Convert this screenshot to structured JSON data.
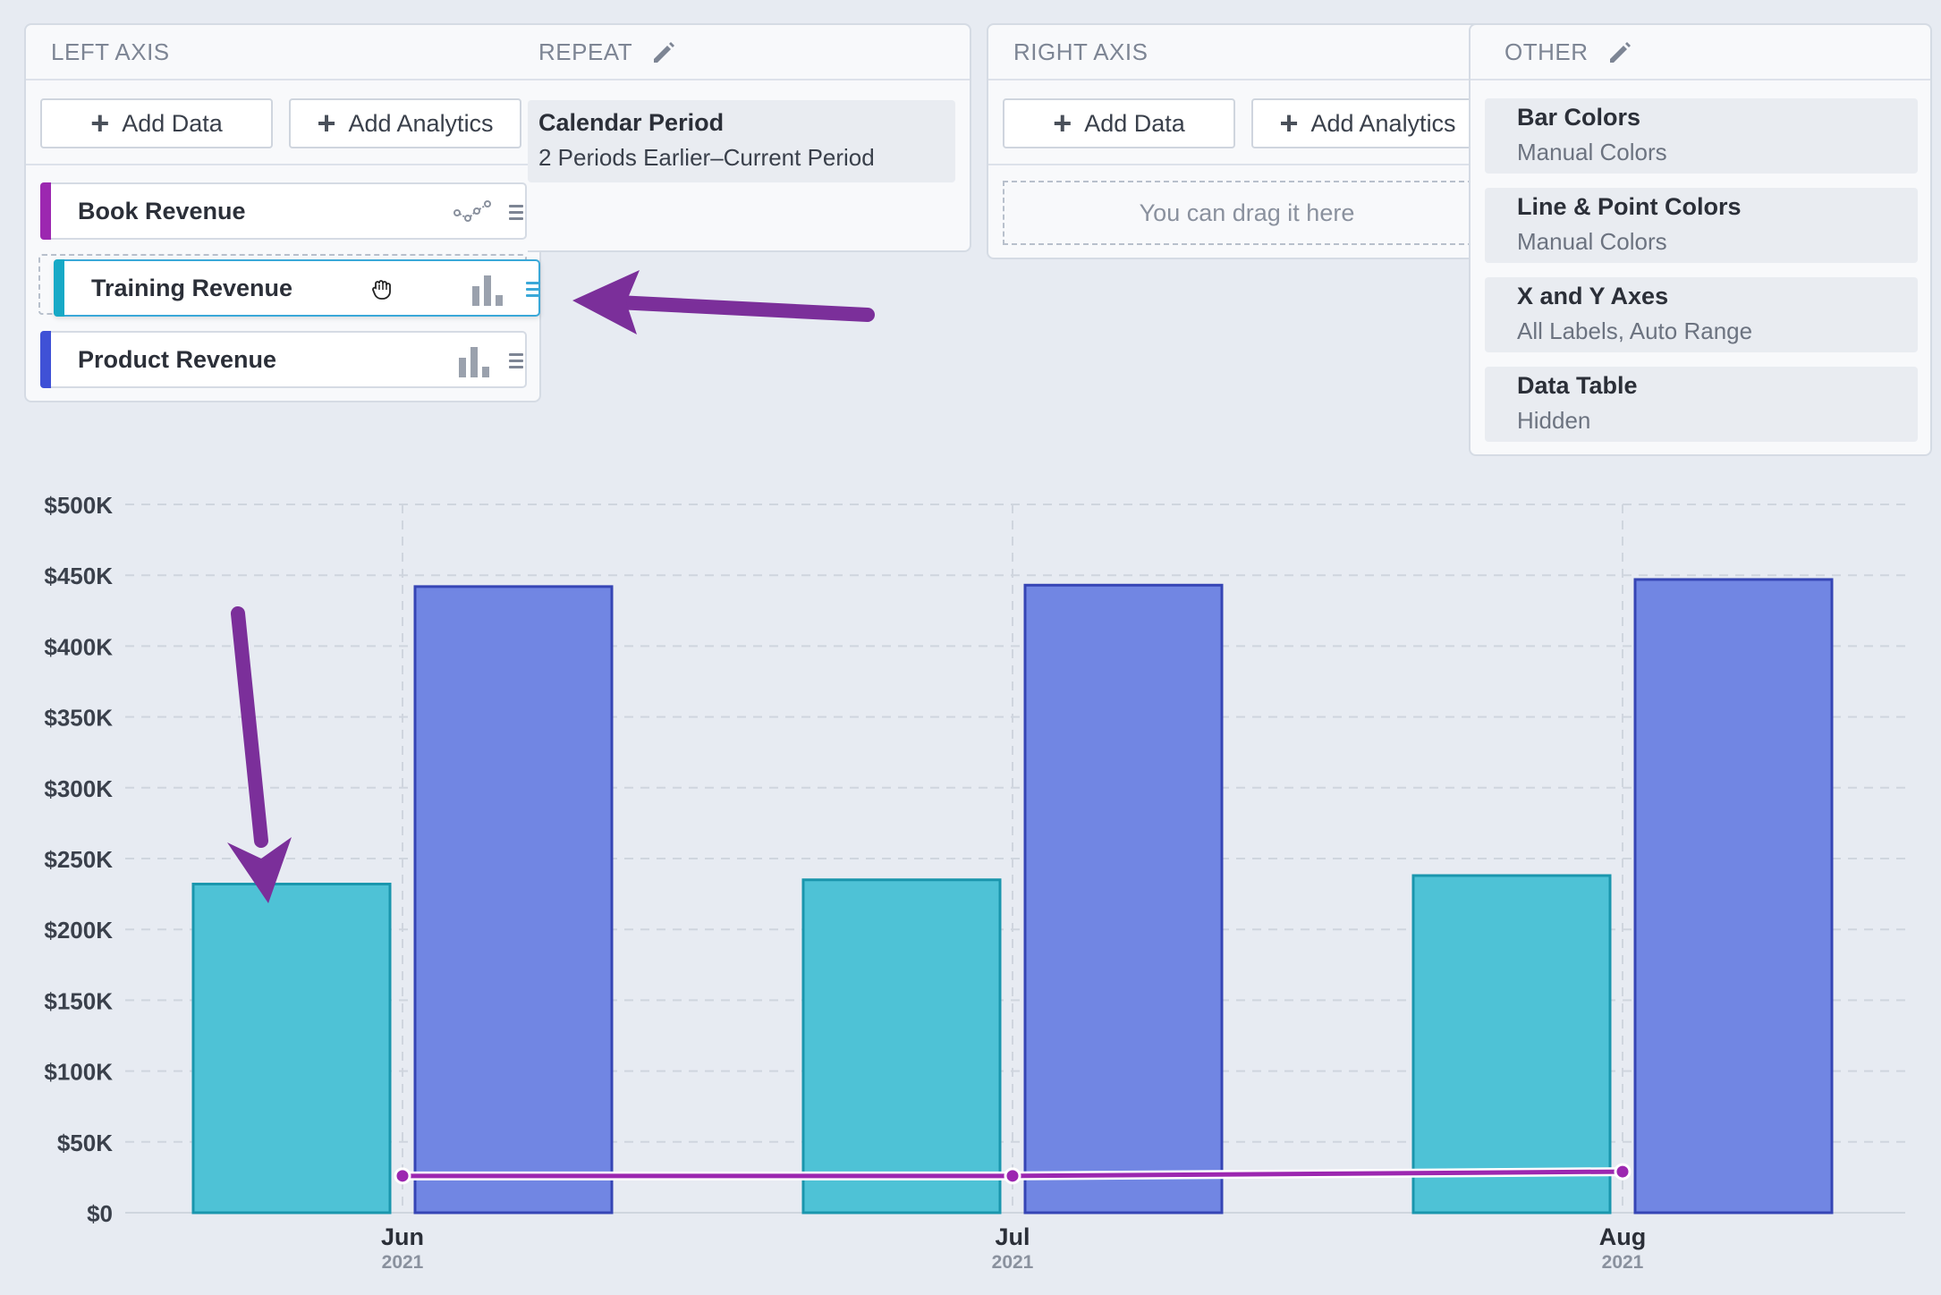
{
  "left_axis": {
    "title": "LEFT AXIS",
    "add_data": "Add Data",
    "add_analytics": "Add Analytics",
    "items": [
      {
        "label": "Book Revenue",
        "color": "#9c27b0",
        "chart_type": "line"
      },
      {
        "label": "Training Revenue",
        "color": "#17a9c6",
        "chart_type": "bar"
      },
      {
        "label": "Product Revenue",
        "color": "#3f51d6",
        "chart_type": "bar"
      }
    ]
  },
  "repeat": {
    "title": "REPEAT",
    "setting_title": "Calendar Period",
    "setting_value": "2 Periods Earlier–Current Period"
  },
  "right_axis": {
    "title": "RIGHT AXIS",
    "add_data": "Add Data",
    "add_analytics": "Add Analytics",
    "drop_hint": "You can drag it here"
  },
  "other": {
    "title": "OTHER",
    "settings": [
      {
        "title": "Bar Colors",
        "value": "Manual Colors"
      },
      {
        "title": "Line & Point Colors",
        "value": "Manual Colors"
      },
      {
        "title": "X and Y Axes",
        "value": "All Labels, Auto Range"
      },
      {
        "title": "Data Table",
        "value": "Hidden"
      }
    ]
  },
  "colors": {
    "training": "#4ec2d6",
    "training_border": "#1a96ad",
    "product": "#7186e3",
    "product_border": "#3645b5",
    "book": "#9c27b0",
    "annotation_arrow": "#7b2f9a"
  },
  "chart_data": {
    "type": "bar",
    "categories": [
      "Jun",
      "Jul",
      "Aug"
    ],
    "category_sublabels": [
      "2021",
      "2021",
      "2021"
    ],
    "y_tick_labels": [
      "$0",
      "$50K",
      "$100K",
      "$150K",
      "$200K",
      "$250K",
      "$300K",
      "$350K",
      "$400K",
      "$450K",
      "$500K"
    ],
    "ylim": [
      0,
      500000
    ],
    "grid": true,
    "series": [
      {
        "name": "Training Revenue",
        "type": "bar",
        "values": [
          232000,
          235000,
          238000
        ]
      },
      {
        "name": "Product Revenue",
        "type": "bar",
        "values": [
          442000,
          443000,
          447000
        ]
      },
      {
        "name": "Book Revenue",
        "type": "line",
        "values": [
          26000,
          26000,
          29000
        ]
      }
    ]
  }
}
